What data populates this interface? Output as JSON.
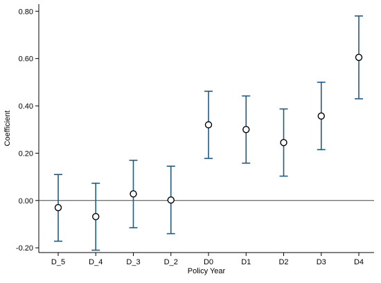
{
  "chart_data": {
    "type": "scatter",
    "subtype": "coefficient-plot-with-confidence-intervals",
    "categories": [
      "D_5",
      "D_4",
      "D_3",
      "D_2",
      "D0",
      "D1",
      "D2",
      "D3",
      "D4"
    ],
    "series": [
      {
        "values": [
          -0.03,
          -0.068,
          0.028,
          0.002,
          0.32,
          0.3,
          0.245,
          0.357,
          0.605
        ],
        "ci_lower": [
          -0.172,
          -0.21,
          -0.115,
          -0.14,
          0.178,
          0.158,
          0.103,
          0.215,
          0.43
        ],
        "ci_upper": [
          0.11,
          0.073,
          0.17,
          0.145,
          0.462,
          0.442,
          0.387,
          0.5,
          0.78
        ]
      }
    ],
    "xlabel": "Policy Year",
    "ylabel": "Coefficient",
    "ylim": [
      -0.22,
      0.83
    ],
    "yticks": [
      -0.2,
      0.0,
      0.2,
      0.4,
      0.6,
      0.8
    ],
    "ytick_labels": [
      "-0.20",
      "0.00",
      "0.20",
      "0.40",
      "0.60",
      "0.80"
    ],
    "reference_line_y": 0,
    "grid": false,
    "colors": {
      "error_bar": "#1f5a85",
      "marker": "#000000",
      "axis": "#000000",
      "reference_line": "#444444"
    }
  }
}
